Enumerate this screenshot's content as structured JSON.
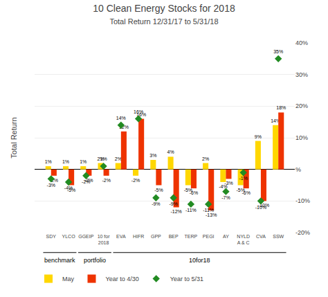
{
  "chart_data": {
    "type": "bar",
    "title": "10 Clean Energy Stocks for 2018",
    "subtitle": "Total Return 12/31/17 to 5/31/18",
    "ylabel": "Total Return",
    "categories": [
      "SDY",
      "YLCO",
      "GGEIP",
      "10 for\n2018",
      "EVA",
      "HIFR",
      "GPP",
      "BEP",
      "TERP",
      "PEGI",
      "AY",
      "NYLD\nA & C",
      "CVA",
      "SSW"
    ],
    "series": [
      {
        "name": "May",
        "type": "bar",
        "color": "#FFD700",
        "values": [
          1,
          1,
          1,
          2,
          2,
          -2,
          3,
          4,
          -5,
          2,
          -4,
          -5,
          9,
          14
        ],
        "value_labels": [
          "1%",
          "1%",
          "1%",
          "2%",
          "2%",
          "-2%",
          "3%",
          "4%",
          "-5%",
          "2%",
          "-4%",
          "-5%",
          "9%",
          "14%"
        ]
      },
      {
        "name": "Year to 4/30",
        "type": "bar",
        "color": "#EE3300",
        "values": [
          -2,
          -5,
          -2,
          -2,
          12,
          16,
          -5,
          -12,
          -6,
          -13,
          -3,
          -6,
          -10,
          18
        ],
        "value_labels": [
          "-2%",
          "-5%",
          "-2%",
          "-2%",
          "12%",
          "16%",
          "-5%",
          "-12%",
          "-6%",
          "-13%",
          "-3%",
          "-6%",
          "-10%",
          "18%"
        ]
      },
      {
        "name": "Year to 5/31",
        "type": "scatter",
        "marker": "diamond",
        "color": "#228B22",
        "values": [
          -3,
          -4,
          -2,
          1,
          14,
          16,
          -9,
          -9,
          -11,
          -11,
          -7,
          -1,
          -10,
          35
        ],
        "value_labels": [
          "-3%",
          "-4%",
          "-2%",
          "1%",
          "14%",
          "16%",
          "-9%",
          "-9%",
          "-11%",
          "-11%",
          "-7%",
          "-1%",
          "-10%",
          "35%"
        ]
      }
    ],
    "ylim": [
      -20,
      40
    ],
    "yticks": [
      {
        "value": -20,
        "label": "-20%"
      },
      {
        "value": -10,
        "label": "-10%"
      },
      {
        "value": 0,
        "label": "%"
      },
      {
        "value": 10,
        "label": "10%"
      },
      {
        "value": 20,
        "label": "20%"
      },
      {
        "value": 30,
        "label": "30%"
      },
      {
        "value": 40,
        "label": "40%"
      }
    ],
    "grid": true,
    "legend": "lower left",
    "data_labels": true,
    "annotations": [
      {
        "text": "benchmark",
        "start": "SDY",
        "end": "YLCO"
      },
      {
        "text": "portfolio",
        "start": "GGEIP",
        "end": "10 for\n2018"
      },
      {
        "text": "10for18",
        "start": "EVA",
        "end": "SSW"
      }
    ]
  }
}
